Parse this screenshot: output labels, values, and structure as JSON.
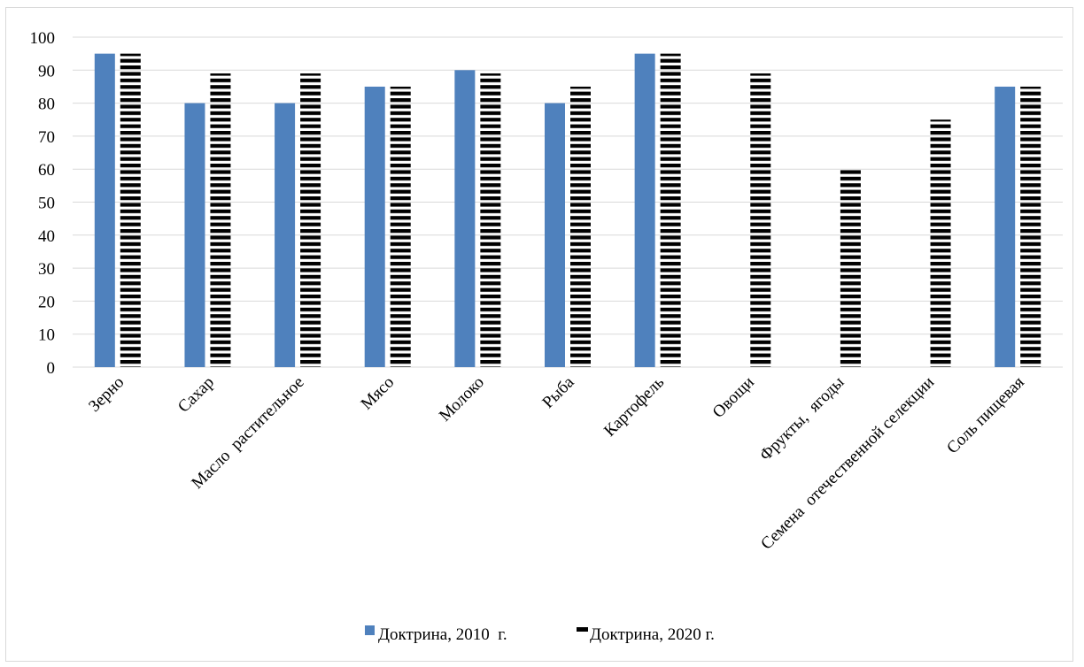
{
  "chart_data": {
    "type": "bar",
    "title": "",
    "xlabel": "",
    "ylabel": "",
    "ylim": [
      0,
      100
    ],
    "yticks": [
      0,
      10,
      20,
      30,
      40,
      50,
      60,
      70,
      80,
      90,
      100
    ],
    "grid": true,
    "legend_position": "bottom",
    "categories": [
      "Зерно",
      "Сахар",
      "Масло  растительное",
      "Мясо",
      "Молоко",
      "Рыба",
      "Картофель",
      "Овощи",
      "Фрукты,  ягоды",
      "Семена  отечественной селекции",
      "Соль пищевая"
    ],
    "series": [
      {
        "name": "Доктрина, 2010  г.",
        "color": "#4f81bd",
        "pattern": "solid",
        "values": [
          95,
          80,
          80,
          85,
          90,
          80,
          95,
          null,
          null,
          null,
          85
        ]
      },
      {
        "name": "Доктрина, 2020 г.",
        "color": "#000000",
        "pattern": "horizontal-stripes",
        "values": [
          95,
          89,
          89,
          85,
          89,
          85,
          95,
          89,
          60,
          75,
          85
        ]
      }
    ]
  }
}
